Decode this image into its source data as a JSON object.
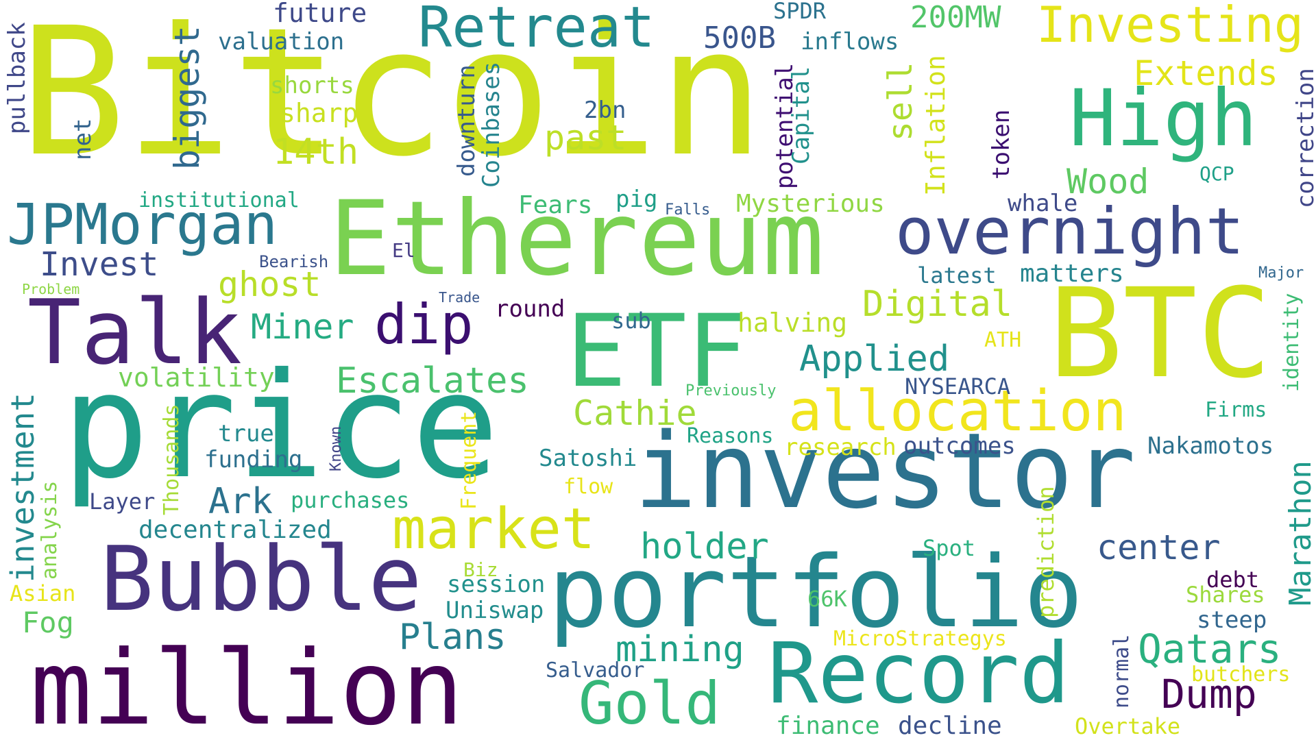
{
  "words": [
    {
      "text": "Bitcoin",
      "color": "#cde11d"
    },
    {
      "text": "Ethereum",
      "color": "#7ad151"
    },
    {
      "text": "price",
      "color": "#1f9e89"
    },
    {
      "text": "investor",
      "color": "#2c728e"
    },
    {
      "text": "portfolio",
      "color": "#24868e"
    },
    {
      "text": "BTC",
      "color": "#d0e11c"
    },
    {
      "text": "High",
      "color": "#2fb47c"
    },
    {
      "text": "Talk",
      "color": "#482475"
    },
    {
      "text": "Bubble",
      "color": "#46337e"
    },
    {
      "text": "million",
      "color": "#440154"
    },
    {
      "text": "Record",
      "color": "#1f988b"
    },
    {
      "text": "ETF",
      "color": "#3bbb75"
    },
    {
      "text": "JPMorgan",
      "color": "#2a788e"
    },
    {
      "text": "overnight",
      "color": "#3e4a89"
    },
    {
      "text": "Retreat",
      "color": "#23898e"
    },
    {
      "text": "Investing",
      "color": "#e5e419"
    },
    {
      "text": "allocation",
      "color": "#f1e51d"
    },
    {
      "text": "market",
      "color": "#d8e219"
    },
    {
      "text": "Gold",
      "color": "#35b779"
    },
    {
      "text": "dip",
      "color": "#3b0f70"
    },
    {
      "text": "Dump",
      "color": "#440154"
    },
    {
      "text": "Qatars",
      "color": "#2ab07f"
    },
    {
      "text": "Escalates",
      "color": "#4ac16d"
    },
    {
      "text": "Applied",
      "color": "#21918c"
    },
    {
      "text": "Digital",
      "color": "#b5de2b"
    },
    {
      "text": "holder",
      "color": "#22a785"
    },
    {
      "text": "center",
      "color": "#38598c"
    },
    {
      "text": "Plans",
      "color": "#277f8e"
    },
    {
      "text": "mining",
      "color": "#1fa187"
    },
    {
      "text": "Cathie",
      "color": "#a0da39"
    },
    {
      "text": "Miner",
      "color": "#25ab82"
    },
    {
      "text": "ghost",
      "color": "#b8de29"
    },
    {
      "text": "Invest",
      "color": "#3d4d8a"
    },
    {
      "text": "Ark",
      "color": "#2c728e"
    },
    {
      "text": "past",
      "color": "#bddf26"
    },
    {
      "text": "14th",
      "color": "#c2df23"
    },
    {
      "text": "Extends",
      "color": "#e2e418"
    },
    {
      "text": "200MW",
      "color": "#52c569"
    },
    {
      "text": "Wood",
      "color": "#5ec962"
    },
    {
      "text": "500B",
      "color": "#39558c"
    },
    {
      "text": "future",
      "color": "#3e4989"
    },
    {
      "text": "valuation",
      "color": "#2d708e"
    },
    {
      "text": "shorts",
      "color": "#98d83e"
    },
    {
      "text": "sharp",
      "color": "#c8e020"
    },
    {
      "text": "biggest",
      "color": "#30698e"
    },
    {
      "text": "net",
      "color": "#33638d"
    },
    {
      "text": "pullback",
      "color": "#3f4788"
    },
    {
      "text": "2bn",
      "color": "#355f8d"
    },
    {
      "text": "downturn",
      "color": "#375b8d"
    },
    {
      "text": "Coinbases",
      "color": "#25848e"
    },
    {
      "text": "potential",
      "color": "#3f0f72"
    },
    {
      "text": "Capital",
      "color": "#21918c"
    },
    {
      "text": "SPDR",
      "color": "#2c728e"
    },
    {
      "text": "inflows",
      "color": "#29798e"
    },
    {
      "text": "sell",
      "color": "#addc30"
    },
    {
      "text": "Inflation",
      "color": "#d2e21b"
    },
    {
      "text": "token",
      "color": "#3b0f70"
    },
    {
      "text": "QCP",
      "color": "#1fa088"
    },
    {
      "text": "correction",
      "color": "#404688"
    },
    {
      "text": "institutional",
      "color": "#22a884"
    },
    {
      "text": "Fears",
      "color": "#3dbc74"
    },
    {
      "text": "pig",
      "color": "#1f9f88"
    },
    {
      "text": "Falls",
      "color": "#365c8d"
    },
    {
      "text": "Mysterious",
      "color": "#90d743"
    },
    {
      "text": "whale",
      "color": "#3e4a89"
    },
    {
      "text": "Bearish",
      "color": "#3b528b"
    },
    {
      "text": "El",
      "color": "#443a83"
    },
    {
      "text": "latest",
      "color": "#2a788e"
    },
    {
      "text": "matters",
      "color": "#25848e"
    },
    {
      "text": "Major",
      "color": "#31678e"
    },
    {
      "text": "Problem",
      "color": "#8ed645"
    },
    {
      "text": "Trade",
      "color": "#39568c"
    },
    {
      "text": "round",
      "color": "#440154"
    },
    {
      "text": "sub",
      "color": "#31688e"
    },
    {
      "text": "halving",
      "color": "#bade28"
    },
    {
      "text": "ATH",
      "color": "#e5e419"
    },
    {
      "text": "identity",
      "color": "#3dbc74"
    },
    {
      "text": "Marathon",
      "color": "#1f9a8a"
    },
    {
      "text": "volatility",
      "color": "#73d056"
    },
    {
      "text": "investment",
      "color": "#23898e"
    },
    {
      "text": "Thousands",
      "color": "#a5db36"
    },
    {
      "text": "true",
      "color": "#23898e"
    },
    {
      "text": "funding",
      "color": "#2d708e"
    },
    {
      "text": "Known",
      "color": "#414487"
    },
    {
      "text": "Frequent",
      "color": "#eae51a"
    },
    {
      "text": "Previously",
      "color": "#4ac16d"
    },
    {
      "text": "NYSEARCA",
      "color": "#39568c"
    },
    {
      "text": "Reasons",
      "color": "#20a386"
    },
    {
      "text": "research",
      "color": "#d5e21a"
    },
    {
      "text": "outcomes",
      "color": "#3b528b"
    },
    {
      "text": "Nakamotos",
      "color": "#2d718e"
    },
    {
      "text": "Firms",
      "color": "#22a884"
    },
    {
      "text": "Satoshi",
      "color": "#23898e"
    },
    {
      "text": "flow",
      "color": "#e8e419"
    },
    {
      "text": "Layer",
      "color": "#3e4989"
    },
    {
      "text": "analysis",
      "color": "#84d44b"
    },
    {
      "text": "purchases",
      "color": "#29af7f"
    },
    {
      "text": "decentralized",
      "color": "#24868e"
    },
    {
      "text": "prediction",
      "color": "#b0dd2f"
    },
    {
      "text": "Spot",
      "color": "#2ab07f"
    },
    {
      "text": "Asian",
      "color": "#e7e419"
    },
    {
      "text": "Fog",
      "color": "#5ec962"
    },
    {
      "text": "Biz",
      "color": "#a8db34"
    },
    {
      "text": "session",
      "color": "#21918c"
    },
    {
      "text": "Uniswap",
      "color": "#228d8d"
    },
    {
      "text": "66K",
      "color": "#4ec36b"
    },
    {
      "text": "debt",
      "color": "#440154"
    },
    {
      "text": "Shares",
      "color": "#9bd93c"
    },
    {
      "text": "steep",
      "color": "#31668e"
    },
    {
      "text": "normal",
      "color": "#3e4c8a"
    },
    {
      "text": "MicroStrategys",
      "color": "#ece51b"
    },
    {
      "text": "Salvador",
      "color": "#365d8d"
    },
    {
      "text": "butchers",
      "color": "#e2e418"
    },
    {
      "text": "finance",
      "color": "#3dbc74"
    },
    {
      "text": "decline",
      "color": "#3b528b"
    },
    {
      "text": "Overtake",
      "color": "#d2e21b"
    }
  ]
}
